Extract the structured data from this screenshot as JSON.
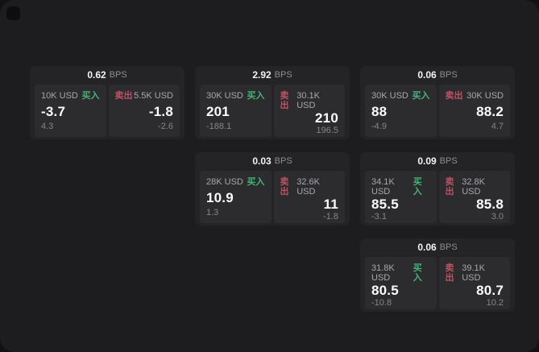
{
  "labels": {
    "bps": "BPS",
    "buy": "买入",
    "sell": "卖出"
  },
  "colors": {
    "background": "#121213",
    "panel_bg": "#1d1d1f",
    "card_bg": "#242427",
    "quote_bg": "#2c2c2f",
    "buy": "#44b476",
    "sell": "#bd5262"
  },
  "icons": {
    "corner": "app-icon"
  },
  "cards": [
    {
      "spread": "0.62",
      "buy": {
        "size": "10K USD",
        "price": "-3.7",
        "delta": "4.3"
      },
      "sell": {
        "size": "5.5K USD",
        "price": "-1.8",
        "delta": "-2.6"
      }
    },
    {
      "spread": "2.92",
      "buy": {
        "size": "30K USD",
        "price": "201",
        "delta": "-188.1"
      },
      "sell": {
        "size": "30.1K USD",
        "price": "210",
        "delta": "196.5"
      }
    },
    {
      "spread": "0.06",
      "buy": {
        "size": "30K USD",
        "price": "88",
        "delta": "-4.9"
      },
      "sell": {
        "size": "30K USD",
        "price": "88.2",
        "delta": "4.7"
      }
    },
    {
      "spread": "0.03",
      "buy": {
        "size": "28K USD",
        "price": "10.9",
        "delta": "1.3"
      },
      "sell": {
        "size": "32.6K USD",
        "price": "11",
        "delta": "-1.8"
      }
    },
    {
      "spread": "0.09",
      "buy": {
        "size": "34.1K USD",
        "price": "85.5",
        "delta": "-3.1"
      },
      "sell": {
        "size": "32.8K USD",
        "price": "85.8",
        "delta": "3.0"
      }
    },
    {
      "spread": "0.06",
      "buy": {
        "size": "31.8K USD",
        "price": "80.5",
        "delta": "-10.8"
      },
      "sell": {
        "size": "39.1K USD",
        "price": "80.7",
        "delta": "10.2"
      }
    }
  ]
}
